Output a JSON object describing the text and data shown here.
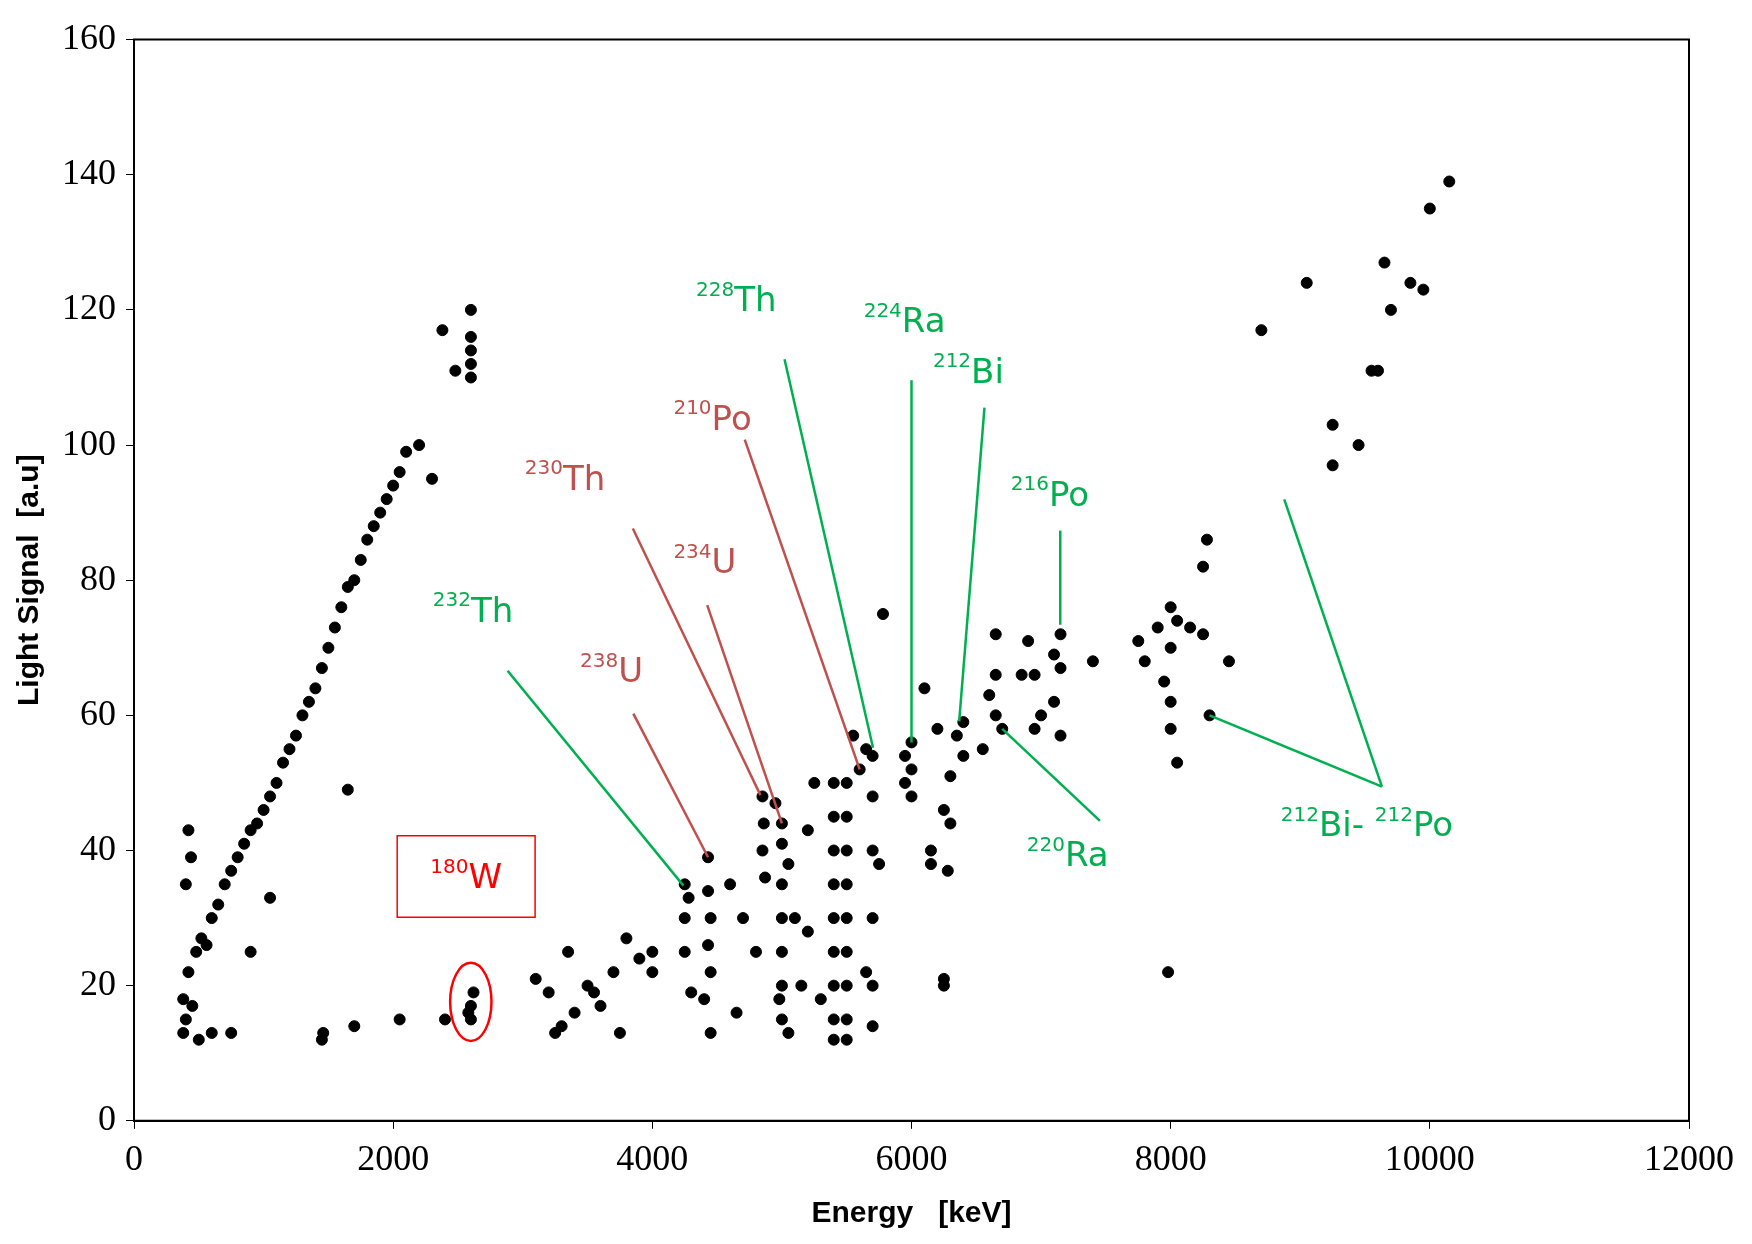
{
  "chart_data": {
    "type": "scatter",
    "xlabel": "Energy   [keV]",
    "ylabel": "Light Signal  [a.u]",
    "xlim": [
      0,
      12000
    ],
    "xticks": [
      0,
      2000,
      4000,
      6000,
      8000,
      10000,
      12000
    ],
    "ylim": [
      0,
      160
    ],
    "yticks": [
      0,
      20,
      40,
      60,
      80,
      100,
      120,
      140,
      160
    ],
    "grid": false,
    "legend": false,
    "marker": "circle",
    "series": [
      {
        "color": "#000000",
        "x": [
          380,
          380,
          400,
          420,
          450,
          480,
          520,
          560,
          600,
          650,
          700,
          750,
          800,
          850,
          900,
          950,
          1000,
          1050,
          1100,
          1150,
          1200,
          1250,
          1300,
          1350,
          1400,
          1450,
          1500,
          1550,
          1600,
          1650,
          1700,
          1750,
          1800,
          1850,
          1900,
          1950,
          2000,
          2050,
          2100,
          2200,
          2300,
          400,
          420,
          440,
          750,
          900,
          1050,
          1650,
          500,
          600,
          2380,
          2480,
          2600,
          2600,
          2600,
          2600,
          2600,
          2600,
          2620,
          2600,
          2580,
          1450,
          1460,
          1700,
          2050,
          2400,
          3100,
          3200,
          3350,
          3400,
          3300,
          3250,
          3500,
          3600,
          3700,
          3750,
          3800,
          3900,
          4000,
          4000,
          3550,
          4250,
          4250,
          4250,
          4280,
          4430,
          4430,
          4450,
          4430,
          4450,
          4400,
          4450,
          4300,
          4600,
          4700,
          4800,
          4650,
          4850,
          4860,
          4850,
          4870,
          4950,
          5000,
          5000,
          5050,
          5000,
          5000,
          5000,
          5000,
          5000,
          5050,
          4980,
          5100,
          5200,
          5150,
          5400,
          5400,
          5400,
          5400,
          5400,
          5400,
          5400,
          5400,
          5400,
          5500,
          5500,
          5500,
          5500,
          5500,
          5500,
          5500,
          5500,
          5500,
          5550,
          5300,
          5250,
          5200,
          5600,
          5650,
          5700,
          5700,
          5700,
          5700,
          5700,
          5700,
          5750,
          5780,
          5650,
          5950,
          5950,
          6000,
          6000,
          6000,
          6100,
          6150,
          6200,
          6250,
          6280,
          6300,
          6300,
          6250,
          6250,
          6400,
          6400,
          6350,
          6150,
          6550,
          6600,
          6650,
          6650,
          6650,
          6700,
          6850,
          6900,
          6950,
          6950,
          7000,
          7100,
          7150,
          7150,
          7150,
          7100,
          7400,
          7750,
          7800,
          7900,
          7950,
          8000,
          8000,
          8000,
          8000,
          8050,
          8050,
          8150,
          8250,
          8280,
          8250,
          8300,
          8450,
          7980,
          8700,
          9050,
          9250,
          9250,
          9450,
          9550,
          9600,
          9650,
          9700,
          9850,
          9950,
          10000,
          10150
        ],
        "values": [
          13,
          18,
          15,
          22,
          17,
          25,
          27,
          26,
          30,
          32,
          35,
          37,
          39,
          41,
          43,
          44,
          46,
          48,
          50,
          53,
          55,
          57,
          60,
          62,
          64,
          67,
          70,
          73,
          76,
          79,
          80,
          83,
          86,
          88,
          90,
          92,
          94,
          96,
          99,
          100,
          95,
          35,
          43,
          39,
          13,
          25,
          33,
          49,
          12,
          13,
          117,
          111,
          120,
          116,
          112,
          110,
          114,
          17,
          19,
          15,
          16,
          12,
          13,
          14,
          15,
          15,
          21,
          19,
          25,
          16,
          14,
          13,
          20,
          17,
          22,
          13,
          27,
          24,
          25,
          22,
          19,
          35,
          30,
          25,
          33,
          39,
          34,
          30,
          26,
          22,
          18,
          13,
          19,
          35,
          30,
          25,
          16,
          48,
          44,
          40,
          36,
          47,
          44,
          41,
          38,
          35,
          30,
          25,
          20,
          15,
          13,
          18,
          30,
          28,
          20,
          50,
          45,
          40,
          35,
          30,
          25,
          20,
          15,
          12,
          50,
          45,
          40,
          35,
          30,
          25,
          20,
          15,
          12,
          57,
          18,
          50,
          43,
          52,
          55,
          54,
          48,
          40,
          30,
          20,
          14,
          38,
          75,
          22,
          54,
          50,
          56,
          52,
          48,
          64,
          40,
          58,
          46,
          37,
          44,
          51,
          20,
          21,
          59,
          54,
          57,
          38,
          55,
          63,
          72,
          66,
          60,
          58,
          66,
          71,
          66,
          58,
          60,
          62,
          72,
          67,
          57,
          69,
          68,
          71,
          68,
          73,
          65,
          76,
          70,
          62,
          58,
          53,
          74,
          73,
          72,
          86,
          82,
          60,
          68,
          22,
          117,
          124,
          103,
          97,
          100,
          111,
          111,
          127,
          120,
          124,
          123,
          135,
          139
        ]
      }
    ],
    "annotations": [
      "$^{180}$W",
      {
        "text": "$^{232}$Th",
        "x": 4240,
        "y": 34.8
      },
      {
        "text": "$^{238}$U",
        "x": 4430,
        "y": 39
      },
      {
        "text": "$^{230}$Th",
        "x": 4834,
        "y": 48.2
      },
      {
        "text": "$^{234}$U",
        "x": 5000,
        "y": 44
      },
      {
        "text": "$^{210}$Po",
        "x": 5600,
        "y": 52
      },
      {
        "text": "$^{228}$Th",
        "x": 5703,
        "y": 55.2
      },
      {
        "text": "$^{224}$Ra",
        "x": 6000,
        "y": 56
      },
      {
        "text": "$^{212}$Bi",
        "x": 6368,
        "y": 59.1
      },
      {
        "text": "$^{216}$Po",
        "x": 7148,
        "y": 73.4
      },
      {
        "text": "$^{220}$Ra",
        "x": 6700,
        "y": 58
      },
      {
        "text": "$^{212}$Bi- $^{212}$Po",
        "x": 8300,
        "y": 60
      }
    ]
  }
}
